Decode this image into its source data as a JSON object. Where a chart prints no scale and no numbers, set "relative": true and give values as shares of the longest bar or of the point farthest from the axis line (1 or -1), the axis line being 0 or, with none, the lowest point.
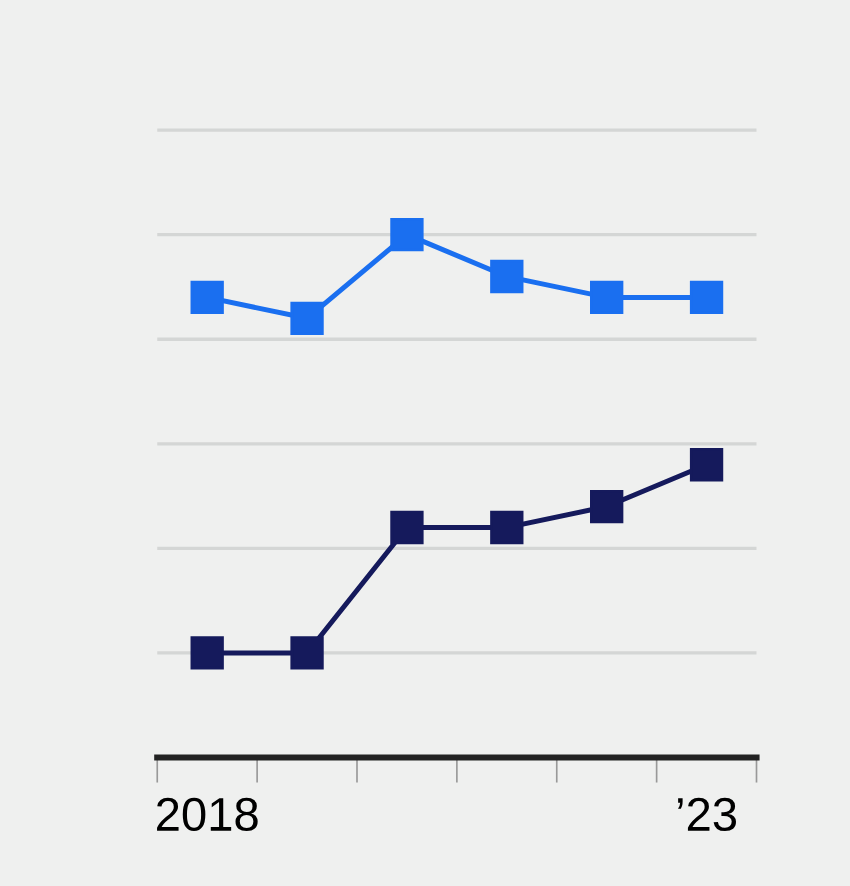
{
  "chart_data": {
    "type": "line",
    "relative": true,
    "categories": [
      "2018",
      null,
      null,
      null,
      null,
      "’23"
    ],
    "series": [
      {
        "color": "#1a6ff0",
        "values": [
          0.88,
          0.84,
          1,
          0.92,
          0.88,
          0.88
        ]
      },
      {
        "color": "#151a5c",
        "values": [
          0.2,
          0.2,
          0.44,
          0.44,
          0.48,
          0.56
        ]
      }
    ],
    "marker": "square",
    "line_style": "solid",
    "grid": "y",
    "legend": false
  }
}
